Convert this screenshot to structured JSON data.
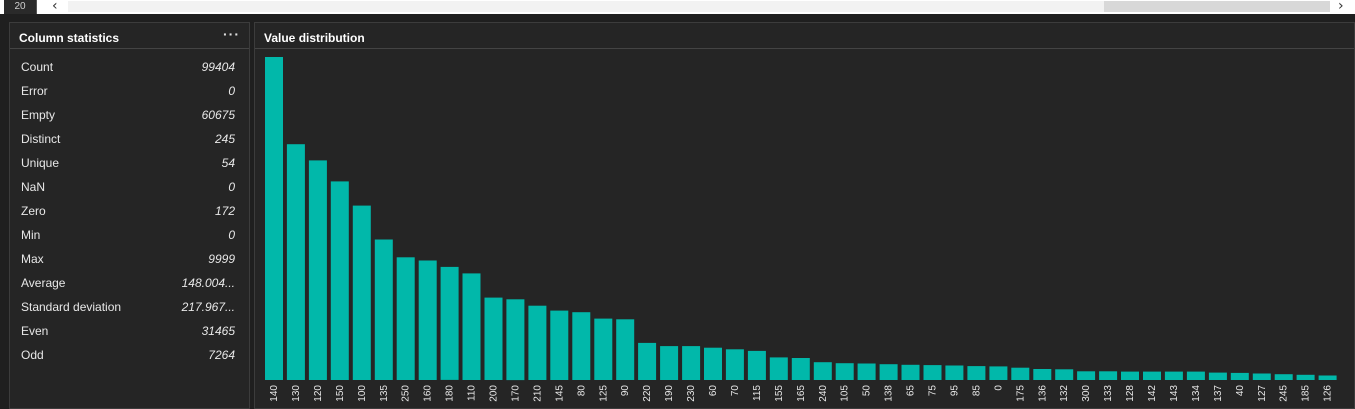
{
  "top": {
    "row_number": "20"
  },
  "stats_panel": {
    "title": "Column statistics",
    "menu_label": "···",
    "rows": [
      {
        "name": "Count",
        "value": "99404"
      },
      {
        "name": "Error",
        "value": "0"
      },
      {
        "name": "Empty",
        "value": "60675"
      },
      {
        "name": "Distinct",
        "value": "245"
      },
      {
        "name": "Unique",
        "value": "54"
      },
      {
        "name": "NaN",
        "value": "0"
      },
      {
        "name": "Zero",
        "value": "172"
      },
      {
        "name": "Min",
        "value": "0"
      },
      {
        "name": "Max",
        "value": "9999"
      },
      {
        "name": "Average",
        "value": "148.004..."
      },
      {
        "name": "Standard deviation",
        "value": "217.967..."
      },
      {
        "name": "Even",
        "value": "31465"
      },
      {
        "name": "Odd",
        "value": "7264"
      }
    ]
  },
  "dist_panel": {
    "title": "Value distribution"
  },
  "colors": {
    "bar": "#01b8aa",
    "background": "#252525"
  },
  "chart_data": {
    "type": "bar",
    "categories": [
      "140",
      "130",
      "120",
      "150",
      "100",
      "135",
      "250",
      "160",
      "180",
      "110",
      "200",
      "170",
      "210",
      "145",
      "80",
      "125",
      "90",
      "220",
      "190",
      "230",
      "60",
      "70",
      "115",
      "155",
      "165",
      "240",
      "105",
      "50",
      "138",
      "65",
      "75",
      "95",
      "85",
      "0",
      "175",
      "136",
      "132",
      "300",
      "133",
      "128",
      "142",
      "143",
      "134",
      "137",
      "40",
      "127",
      "245",
      "185",
      "126"
    ],
    "values": [
      100,
      73,
      68,
      61.5,
      54,
      43.5,
      38,
      37,
      35,
      33,
      25.5,
      25,
      23,
      21.5,
      21,
      19,
      18.8,
      11.5,
      10.5,
      10.5,
      10,
      9.5,
      9,
      7,
      6.8,
      5.5,
      5.2,
      5.1,
      4.9,
      4.7,
      4.6,
      4.5,
      4.3,
      4.2,
      3.8,
      3.4,
      3.3,
      2.7,
      2.7,
      2.6,
      2.6,
      2.6,
      2.6,
      2.3,
      2.2,
      2,
      1.8,
      1.6,
      1.4
    ],
    "title": "",
    "xlabel": "",
    "ylabel": "",
    "ylim": [
      0,
      100
    ],
    "grid": false,
    "legend": "none"
  }
}
